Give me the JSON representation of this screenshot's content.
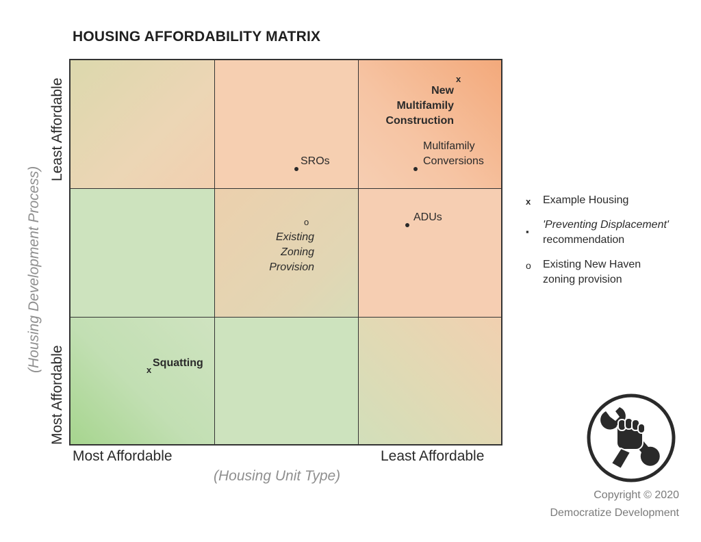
{
  "title": "HOUSING AFFORDABILITY MATRIX",
  "x_axis": {
    "title": "(Housing Unit Type)",
    "low": "Most Affordable",
    "high": "Least Affordable"
  },
  "y_axis": {
    "title": "(Housing Development Process)",
    "low": "Most Affordable",
    "high": "Least Affordable"
  },
  "items": {
    "new_multifamily": {
      "line1": "New",
      "line2": "Multifamily",
      "line3": "Construction",
      "marker": "x"
    },
    "multifamily_conversions": {
      "line1": "Multifamily",
      "line2": "Conversions"
    },
    "sros": {
      "label": "SROs"
    },
    "adus": {
      "label": "ADUs"
    },
    "existing_zoning": {
      "marker": "o",
      "line1": "Existing",
      "line2": "Zoning",
      "line3": "Provision"
    },
    "squatting": {
      "label": "Squatting",
      "marker": "x"
    }
  },
  "legend": [
    {
      "symbol": "x",
      "text": "Example Housing"
    },
    {
      "symbol": "▪",
      "line1": "'Preventing Displacement'",
      "line2": "recommendation"
    },
    {
      "symbol": "o",
      "line1": "Existing New Haven",
      "line2": "zoning provision"
    }
  ],
  "copyright": {
    "line1": "Copyright © 2020",
    "line2": "Democratize Development"
  },
  "logo_icon": "fist-wrench-icon",
  "colors": {
    "least_affordable": "#f3a97b",
    "most_affordable": "#a6d58e",
    "neutral": "#f6ceb2",
    "mid_green": "#cde3be"
  }
}
